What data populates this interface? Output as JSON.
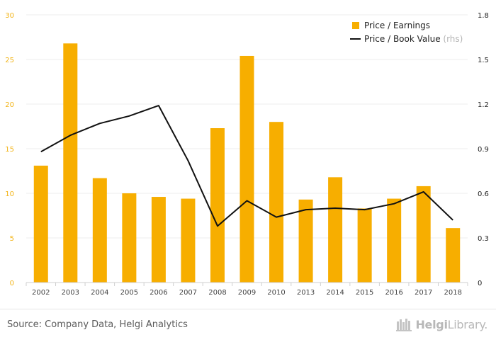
{
  "chart_data": {
    "type": "bar+line",
    "categories": [
      "2002",
      "2003",
      "2004",
      "2005",
      "2006",
      "2007",
      "2008",
      "2009",
      "2010",
      "2013",
      "2014",
      "2015",
      "2016",
      "2017",
      "2018"
    ],
    "series": [
      {
        "name": "Price / Earnings",
        "type": "bar",
        "axis": "left",
        "color": "#f7ae00",
        "values": [
          13.1,
          26.8,
          11.7,
          10.0,
          9.6,
          9.4,
          17.3,
          25.4,
          18.0,
          9.3,
          11.8,
          8.3,
          9.4,
          10.8,
          6.1
        ]
      },
      {
        "name": "Price / Book Value",
        "name_suffix": "(rhs)",
        "type": "line",
        "axis": "right",
        "color": "#111111",
        "values": [
          0.88,
          0.99,
          1.07,
          1.12,
          1.19,
          0.82,
          0.38,
          0.55,
          0.44,
          0.49,
          0.5,
          0.49,
          0.53,
          0.61,
          0.42
        ]
      }
    ],
    "y_left": {
      "min": 0,
      "max": 30,
      "ticks": [
        "0",
        "5",
        "10",
        "15",
        "20",
        "25",
        "30"
      ],
      "tick_color": "#f2b418"
    },
    "y_right": {
      "min": 0,
      "max": 1.8,
      "ticks": [
        "0",
        "0.3",
        "0.6",
        "0.9",
        "1.2",
        "1.5",
        "1.8"
      ],
      "tick_color": "#222222"
    },
    "grid": true,
    "legend_position": "top-right"
  },
  "footer": {
    "source": "Source: Company Data, Helgi Analytics",
    "logo_bold": "Helgi",
    "logo_regular": "Library."
  }
}
